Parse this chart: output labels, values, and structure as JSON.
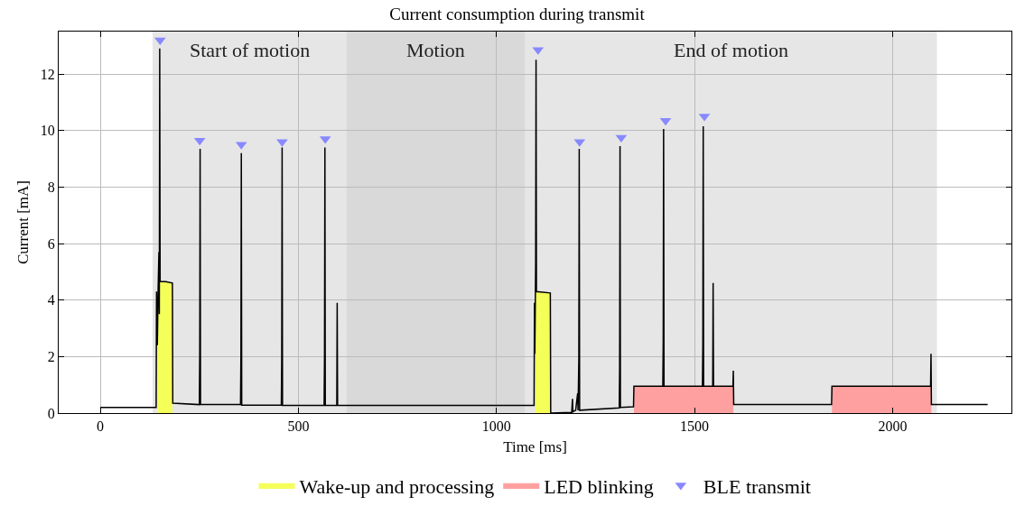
{
  "chart_data": {
    "type": "line",
    "title": "Current consumption during transmit",
    "xlabel": "Time [ms]",
    "ylabel": "Current [mA]",
    "xlim": [
      -105,
      2300
    ],
    "xticks": [
      0,
      500,
      1000,
      1500,
      2000
    ],
    "ylim": [
      0,
      13.5
    ],
    "yticks": [
      0,
      2,
      4,
      6,
      8,
      10,
      12
    ],
    "grid": true,
    "legend": "bottom",
    "bands": [
      {
        "axis": "x",
        "from": 132,
        "to": 621,
        "label": "Start of motion",
        "color": "#e6e6e6"
      },
      {
        "axis": "x",
        "from": 621,
        "to": 1073,
        "label": "Motion",
        "color": "#d9d9d9"
      },
      {
        "axis": "x",
        "from": 1073,
        "to": 2112,
        "label": "End of motion",
        "color": "#e6e6e6"
      }
    ],
    "series": [
      {
        "type": "area",
        "name": "Wake-up and processing",
        "color": "#f5ff5a",
        "x": [
          144,
          182,
          640,
          1098,
          1137
        ],
        "values": [
          4.65,
          4.6,
          null,
          4.3,
          4.25
        ]
      },
      {
        "type": "area",
        "name": "LED blinking",
        "color": "#ffa0a0",
        "x": [
          1347,
          1598,
          1722,
          1847,
          2098
        ],
        "values": [
          0.95,
          0.95,
          null,
          0.95,
          0.95
        ]
      },
      {
        "color": "#000000",
        "marker": "none",
        "line_style": "solid",
        "x": [
          0,
          141,
          142,
          144,
          146,
          148,
          149,
          150,
          151,
          165,
          182,
          183,
          250,
          251,
          252,
          253,
          354,
          355,
          356,
          357,
          457,
          458,
          459,
          460,
          565,
          566,
          567,
          568,
          597,
          598,
          599,
          1095,
          1096,
          1097,
          1099,
          1100,
          1101,
          1136,
          1137,
          1190,
          1192,
          1193,
          1200,
          1205,
          1206,
          1208,
          1209,
          1210,
          1310,
          1311,
          1312,
          1313,
          1346,
          1347,
          1420,
          1421,
          1422,
          1423,
          1520,
          1521,
          1522,
          1523,
          1546,
          1547,
          1548,
          1597,
          1598,
          1599,
          1846,
          1847,
          2096,
          2097,
          2098,
          2240
        ],
        "values": [
          0.2,
          0.2,
          4.3,
          2.4,
          4.4,
          5.7,
          3.5,
          12.9,
          4.65,
          4.65,
          4.6,
          0.35,
          0.3,
          2.0,
          9.35,
          0.3,
          0.3,
          2.0,
          9.2,
          0.28,
          0.28,
          1.9,
          9.4,
          0.27,
          0.27,
          2.0,
          9.4,
          0.27,
          0.27,
          3.9,
          0.27,
          0.27,
          3.9,
          2.1,
          5.3,
          12.5,
          4.3,
          4.25,
          0.0,
          0.02,
          0.5,
          0.05,
          0.1,
          0.7,
          0.1,
          1.9,
          9.35,
          0.1,
          0.18,
          1.6,
          9.45,
          0.2,
          0.22,
          0.95,
          0.95,
          2.5,
          10.05,
          0.95,
          0.95,
          2.4,
          10.15,
          0.95,
          0.95,
          4.6,
          0.95,
          0.95,
          1.5,
          0.3,
          0.3,
          0.95,
          0.95,
          2.1,
          0.3,
          0.3
        ]
      },
      {
        "type": "scatter",
        "name": "BLE transmit",
        "color": "#8888ff",
        "marker": "triangle",
        "x": [
          151,
          251,
          356,
          459,
          568,
          1105,
          1210,
          1315,
          1427,
          1525
        ],
        "values": [
          13.2,
          9.65,
          9.5,
          9.6,
          9.7,
          12.85,
          9.6,
          9.75,
          10.35,
          10.5
        ]
      }
    ]
  }
}
